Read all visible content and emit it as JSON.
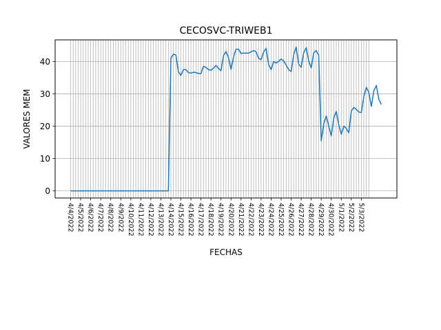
{
  "chart_data": {
    "type": "line",
    "title": "CECOSVC-TRIWEB1",
    "xlabel": "FECHAS",
    "ylabel": "VALORES MEM",
    "ylim": [
      -2.2,
      46.7
    ],
    "yticks": [
      0,
      10,
      20,
      30,
      40
    ],
    "grid": true,
    "line_color": "#1f77b4",
    "xtick_labels": [
      "4/4/2022",
      "4/5/2022",
      "4/6/2022",
      "4/7/2022",
      "4/8/2022",
      "4/9/2022",
      "4/10/2022",
      "4/11/2022",
      "4/12/2022",
      "4/13/2022",
      "4/14/2022",
      "4/15/2022",
      "4/16/2022",
      "4/17/2022",
      "4/18/2022",
      "4/19/2022",
      "4/20/2022",
      "4/21/2022",
      "4/22/2022",
      "4/23/2022",
      "4/24/2022",
      "4/25/2022",
      "4/26/2022",
      "4/27/2022",
      "4/28/2022",
      "4/29/2022",
      "4/30/2022",
      "5/1/2022",
      "5/2/2022",
      "5/3/2022"
    ],
    "series": [
      {
        "values": [
          0,
          0,
          0,
          0,
          0,
          0,
          0,
          0,
          0,
          0,
          0,
          0,
          0,
          0,
          0,
          0,
          0,
          0,
          0,
          0,
          0,
          0,
          0,
          0,
          0,
          0,
          0,
          0,
          0,
          0,
          0,
          0,
          0,
          0,
          0,
          0,
          0,
          0,
          0,
          0,
          41,
          42.3,
          42,
          36.8,
          35.7,
          37.5,
          37.5,
          36.6,
          36.4,
          36.7,
          36.6,
          36.3,
          36.3,
          38.5,
          38.2,
          37.5,
          37.3,
          38,
          38.8,
          37.9,
          37.2,
          41.8,
          43.1,
          41.2,
          37.6,
          41.4,
          43.8,
          43.8,
          42.5,
          42.6,
          42.6,
          42.6,
          43,
          43.4,
          43,
          41,
          40.6,
          42.9,
          44.1,
          39.1,
          37.5,
          40,
          39.5,
          40.1,
          40.8,
          40.2,
          38.9,
          37.5,
          36.9,
          42.1,
          44.5,
          39.2,
          38.2,
          42.7,
          44.3,
          40.2,
          38,
          42.7,
          43.4,
          41.9,
          15.5,
          20.7,
          23.2,
          20,
          17,
          22.5,
          24.6,
          20.4,
          17.5,
          20,
          19.3,
          18,
          24.7,
          25.8,
          25.2,
          24.4,
          24.2,
          29.2,
          32,
          30.5,
          26.1,
          31,
          32.6,
          28.3,
          26.7
        ]
      }
    ]
  }
}
